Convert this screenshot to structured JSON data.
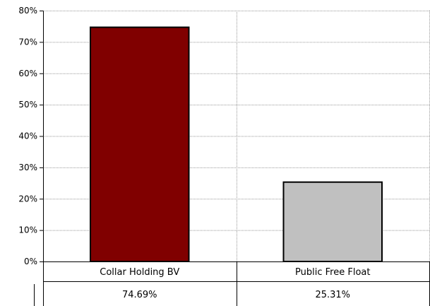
{
  "chart_data": {
    "type": "bar",
    "categories": [
      "Collar Holding BV",
      "Public Free Float"
    ],
    "values": [
      74.69,
      25.31
    ],
    "value_labels": [
      "74.69%",
      "25.31%"
    ],
    "ylim": [
      0,
      80
    ],
    "yticks": [
      0,
      10,
      20,
      30,
      40,
      50,
      60,
      70,
      80
    ],
    "ytick_labels": [
      "0%",
      "10%",
      "20%",
      "30%",
      "40%",
      "50%",
      "60%",
      "70%",
      "80%"
    ],
    "grid": true,
    "title": "",
    "xlabel": "",
    "ylabel": "",
    "colors": [
      "#800000",
      "#c0c0c0"
    ],
    "data_table": true
  }
}
